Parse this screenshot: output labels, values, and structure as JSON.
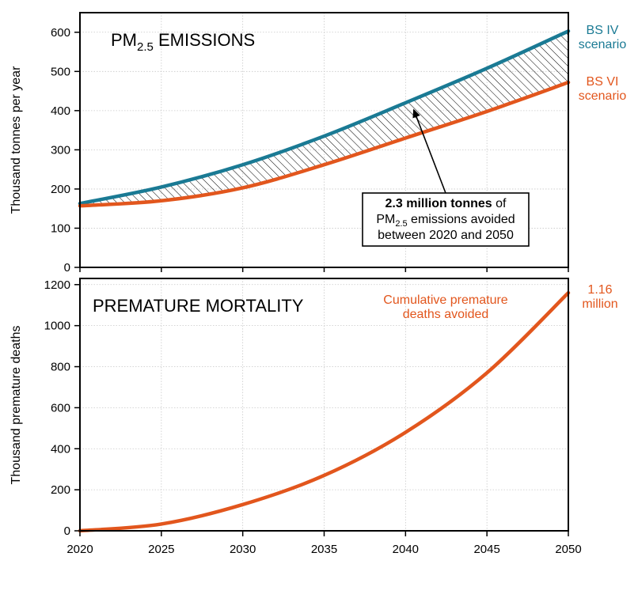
{
  "chart_data": [
    {
      "type": "line",
      "title_main": "PM",
      "title_sub": "2.5",
      "title_rest": " EMISSIONS",
      "ylabel": "Thousand tonnes per year",
      "xlim": [
        2020,
        2050
      ],
      "ylim": [
        0,
        650
      ],
      "yticks": [
        0,
        100,
        200,
        300,
        400,
        500,
        600
      ],
      "x": [
        2020,
        2025,
        2030,
        2035,
        2040,
        2045,
        2050
      ],
      "series": [
        {
          "name": "BS IV scenario",
          "label_line1": "BS IV",
          "label_line2": "scenario",
          "color": "#1a7a94",
          "values": [
            163,
            205,
            262,
            335,
            420,
            508,
            603
          ]
        },
        {
          "name": "BS VI scenario",
          "label_line1": "BS VI",
          "label_line2": "scenario",
          "color": "#e2561d",
          "values": [
            157,
            170,
            203,
            262,
            330,
            398,
            472
          ]
        }
      ],
      "annotation": {
        "bold": "2.3 million tonnes",
        "line1_rest": " of",
        "line2_main": "PM",
        "line2_sub": "2.5",
        "line2_rest": " emissions avoided",
        "line3": "between 2020 and 2050",
        "arrow_target_x": 2041,
        "arrow_target_y": 395
      }
    },
    {
      "type": "line",
      "title": "PREMATURE MORTALITY",
      "ylabel": "Thousand premature deaths",
      "xlabel": "",
      "xlim": [
        2020,
        2050
      ],
      "ylim": [
        0,
        1230
      ],
      "yticks": [
        0,
        200,
        400,
        600,
        800,
        1000,
        1200
      ],
      "xticks": [
        2020,
        2025,
        2030,
        2035,
        2040,
        2045,
        2050
      ],
      "x": [
        2020,
        2025,
        2030,
        2035,
        2040,
        2045,
        2050
      ],
      "series": [
        {
          "name": "Cumulative premature deaths avoided",
          "label_line1": "Cumulative premature",
          "label_line2": "deaths avoided",
          "color": "#e2561d",
          "values": [
            0,
            33,
            128,
            270,
            480,
            770,
            1160
          ]
        }
      ],
      "end_label_line1": "1.16",
      "end_label_line2": "million"
    }
  ]
}
